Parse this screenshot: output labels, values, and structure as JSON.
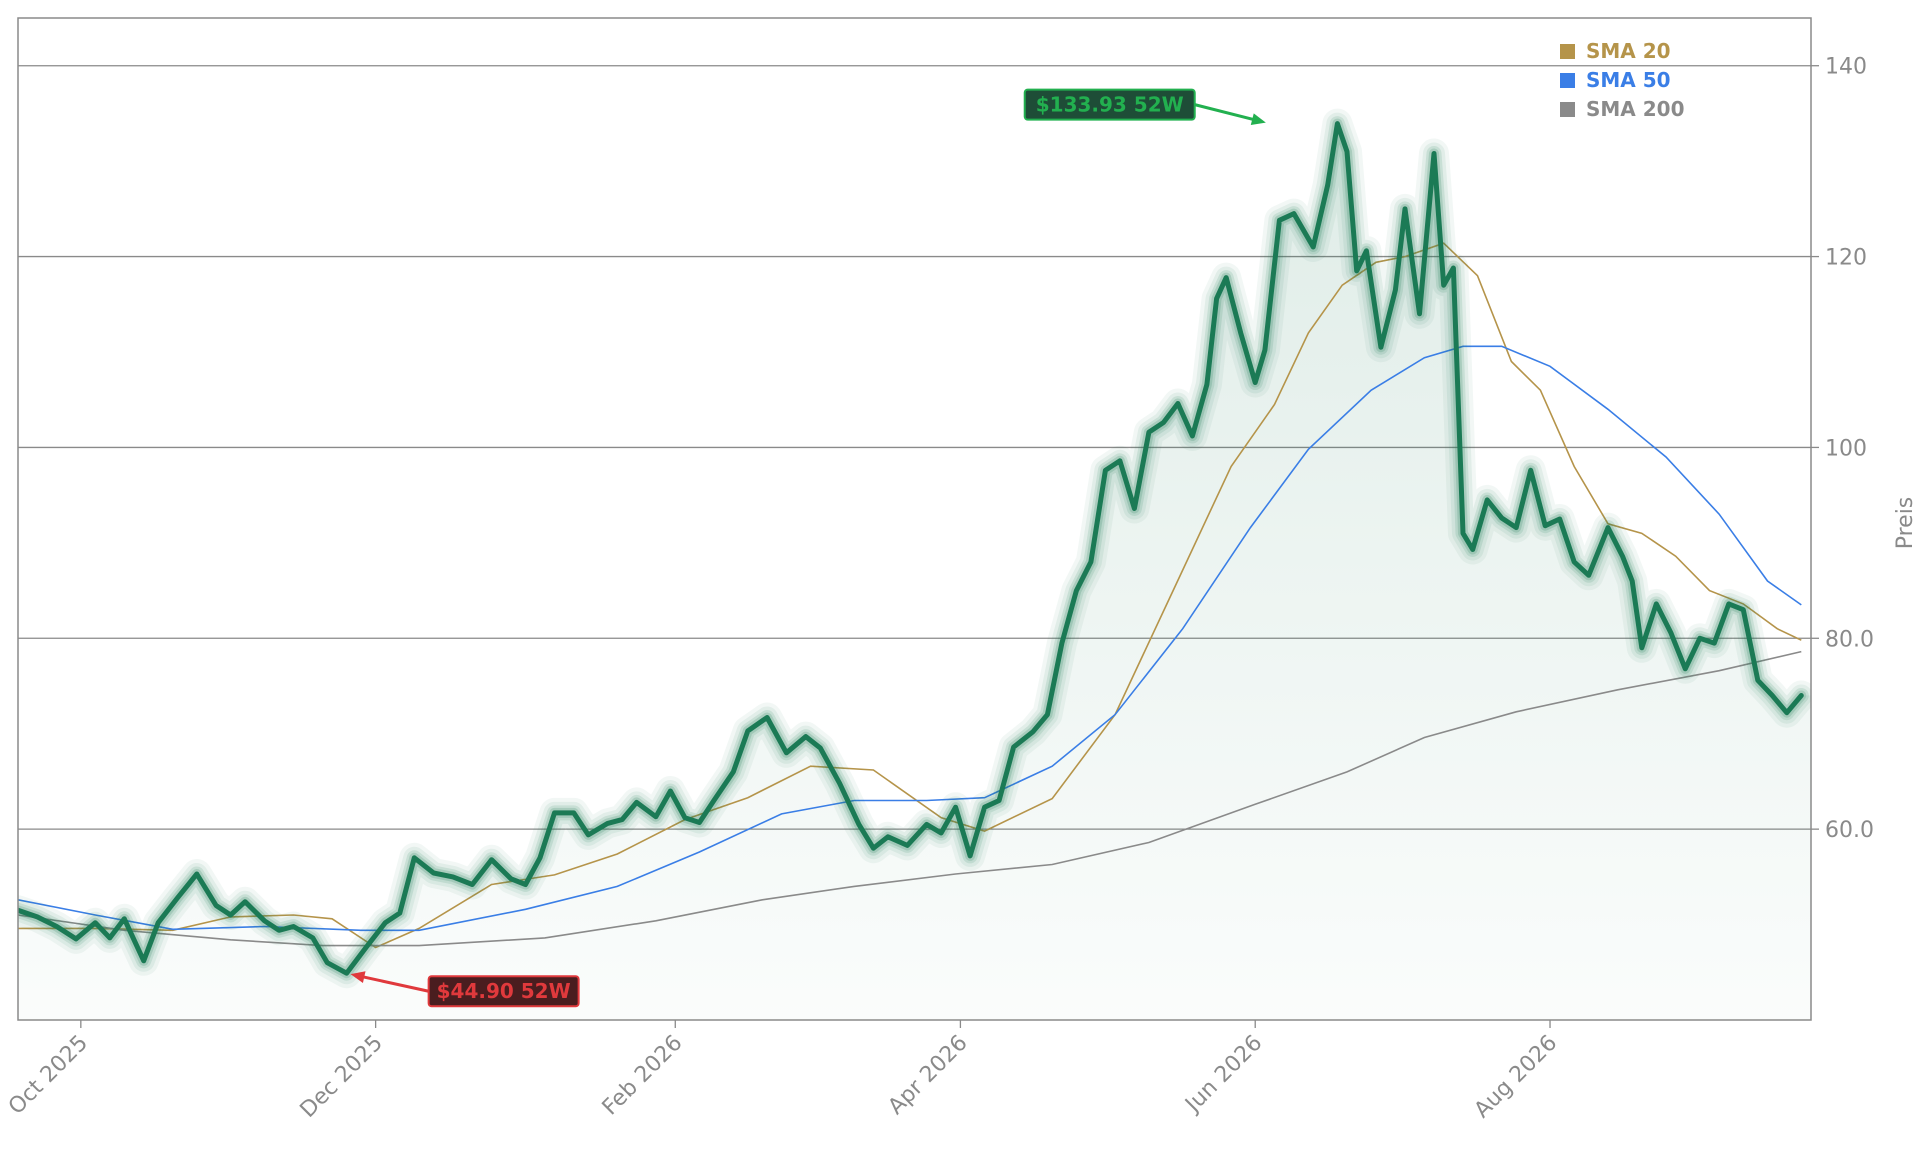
{
  "chart_data": {
    "type": "line",
    "ylabel": "Preis",
    "ylim": [
      40,
      145
    ],
    "yticks": [
      60,
      80,
      100,
      120,
      140
    ],
    "ytick_labels": [
      "60.0",
      "80.0",
      "100",
      "120",
      "140"
    ],
    "xticks": [
      {
        "date": "2025-10-01",
        "label": "Oct 2025"
      },
      {
        "date": "2025-12-01",
        "label": "Dec 2025"
      },
      {
        "date": "2026-02-01",
        "label": "Feb 2026"
      },
      {
        "date": "2026-04-01",
        "label": "Apr 2026"
      },
      {
        "date": "2026-06-01",
        "label": "Jun 2026"
      },
      {
        "date": "2026-08-01",
        "label": "Aug 2026"
      }
    ],
    "xlim": [
      "2025-09-18",
      "2026-09-24"
    ],
    "grid": "horizontal",
    "legend_placement": "top-right",
    "legend": [
      {
        "label": "SMA 20",
        "color": "#b5944a"
      },
      {
        "label": "SMA 50",
        "color": "#3a7ee6"
      },
      {
        "label": "SMA 200",
        "color": "#8a8a8a"
      }
    ],
    "annotations": [
      {
        "text": "$133.93 52W",
        "date": "2026-06-04",
        "value": 133.93,
        "kind": "high",
        "color": "#22b04f"
      },
      {
        "text": "$44.90 52W",
        "date": "2025-11-25",
        "value": 44.9,
        "kind": "low",
        "color": "#e0393c"
      }
    ],
    "series": [
      {
        "role": "price",
        "color": "#1b7a55",
        "points": [
          [
            "2025-09-18",
            51.5
          ],
          [
            "2025-09-22",
            50.8
          ],
          [
            "2025-09-26",
            49.8
          ],
          [
            "2025-09-30",
            48.5
          ],
          [
            "2025-10-04",
            50.2
          ],
          [
            "2025-10-07",
            48.6
          ],
          [
            "2025-10-10",
            50.6
          ],
          [
            "2025-10-14",
            46.2
          ],
          [
            "2025-10-17",
            50.2
          ],
          [
            "2025-10-21",
            52.8
          ],
          [
            "2025-10-25",
            55.3
          ],
          [
            "2025-10-29",
            52.0
          ],
          [
            "2025-11-01",
            51.0
          ],
          [
            "2025-11-04",
            52.4
          ],
          [
            "2025-11-08",
            50.4
          ],
          [
            "2025-11-11",
            49.4
          ],
          [
            "2025-11-14",
            49.8
          ],
          [
            "2025-11-18",
            48.6
          ],
          [
            "2025-11-21",
            46.0
          ],
          [
            "2025-11-25",
            44.9
          ],
          [
            "2025-11-29",
            47.6
          ],
          [
            "2025-12-03",
            50.2
          ],
          [
            "2025-12-06",
            51.2
          ],
          [
            "2025-12-09",
            57.0
          ],
          [
            "2025-12-13",
            55.4
          ],
          [
            "2025-12-17",
            55.0
          ],
          [
            "2025-12-21",
            54.2
          ],
          [
            "2025-12-25",
            56.8
          ],
          [
            "2025-12-29",
            54.8
          ],
          [
            "2026-01-01",
            54.2
          ],
          [
            "2026-01-04",
            57.0
          ],
          [
            "2026-01-07",
            61.7
          ],
          [
            "2026-01-11",
            61.7
          ],
          [
            "2026-01-14",
            59.4
          ],
          [
            "2026-01-18",
            60.6
          ],
          [
            "2026-01-21",
            61.0
          ],
          [
            "2026-01-24",
            62.8
          ],
          [
            "2026-01-28",
            61.3
          ],
          [
            "2026-01-31",
            64.0
          ],
          [
            "2026-02-03",
            61.2
          ],
          [
            "2026-02-06",
            60.7
          ],
          [
            "2026-02-09",
            63.0
          ],
          [
            "2026-02-13",
            66.0
          ],
          [
            "2026-02-16",
            70.3
          ],
          [
            "2026-02-20",
            71.7
          ],
          [
            "2026-02-24",
            68.0
          ],
          [
            "2026-02-28",
            69.7
          ],
          [
            "2026-03-03",
            68.5
          ],
          [
            "2026-03-07",
            64.8
          ],
          [
            "2026-03-11",
            60.5
          ],
          [
            "2026-03-14",
            58.0
          ],
          [
            "2026-03-17",
            59.2
          ],
          [
            "2026-03-21",
            58.3
          ],
          [
            "2026-03-25",
            60.5
          ],
          [
            "2026-03-28",
            59.6
          ],
          [
            "2026-03-31",
            62.3
          ],
          [
            "2026-04-03",
            57.2
          ],
          [
            "2026-04-06",
            62.3
          ],
          [
            "2026-04-09",
            63.0
          ],
          [
            "2026-04-12",
            68.6
          ],
          [
            "2026-04-16",
            70.2
          ],
          [
            "2026-04-19",
            72.0
          ],
          [
            "2026-04-22",
            79.5
          ],
          [
            "2026-04-25",
            85.0
          ],
          [
            "2026-04-28",
            88.0
          ],
          [
            "2026-05-01",
            97.6
          ],
          [
            "2026-05-04",
            98.6
          ],
          [
            "2026-05-07",
            93.6
          ],
          [
            "2026-05-10",
            101.6
          ],
          [
            "2026-05-13",
            102.6
          ],
          [
            "2026-05-16",
            104.6
          ],
          [
            "2026-05-19",
            101.2
          ],
          [
            "2026-05-22",
            106.6
          ],
          [
            "2026-05-24",
            115.6
          ],
          [
            "2026-05-26",
            117.8
          ],
          [
            "2026-05-29",
            112.0
          ],
          [
            "2026-06-01",
            106.8
          ],
          [
            "2026-06-03",
            110.2
          ],
          [
            "2026-06-06",
            123.8
          ],
          [
            "2026-06-09",
            124.5
          ],
          [
            "2026-06-13",
            121.0
          ],
          [
            "2026-06-16",
            127.5
          ],
          [
            "2026-06-18",
            133.93
          ],
          [
            "2026-06-20",
            131.0
          ],
          [
            "2026-06-22",
            118.5
          ],
          [
            "2026-06-24",
            120.6
          ],
          [
            "2026-06-27",
            110.5
          ],
          [
            "2026-06-30",
            116.5
          ],
          [
            "2026-07-02",
            125.0
          ],
          [
            "2026-07-05",
            114.0
          ],
          [
            "2026-07-08",
            130.8
          ],
          [
            "2026-07-10",
            117.0
          ],
          [
            "2026-07-12",
            118.8
          ],
          [
            "2026-07-14",
            91.0
          ],
          [
            "2026-07-16",
            89.3
          ],
          [
            "2026-07-19",
            94.5
          ],
          [
            "2026-07-22",
            92.6
          ],
          [
            "2026-07-25",
            91.6
          ],
          [
            "2026-07-28",
            97.6
          ],
          [
            "2026-07-31",
            91.8
          ],
          [
            "2026-08-03",
            92.5
          ],
          [
            "2026-08-06",
            88.0
          ],
          [
            "2026-08-09",
            86.6
          ],
          [
            "2026-08-13",
            91.6
          ],
          [
            "2026-08-16",
            88.6
          ],
          [
            "2026-08-18",
            86.0
          ],
          [
            "2026-08-20",
            79.0
          ],
          [
            "2026-08-23",
            83.6
          ],
          [
            "2026-08-26",
            80.6
          ],
          [
            "2026-08-29",
            76.8
          ],
          [
            "2026-09-01",
            80.0
          ],
          [
            "2026-09-04",
            79.5
          ],
          [
            "2026-09-07",
            83.6
          ],
          [
            "2026-09-10",
            83.0
          ],
          [
            "2026-09-13",
            75.6
          ],
          [
            "2026-09-16",
            74.0
          ],
          [
            "2026-09-19",
            72.2
          ],
          [
            "2026-09-22",
            74.0
          ]
        ]
      },
      {
        "name": "SMA 20",
        "color": "#b5944a",
        "points": [
          [
            "2025-09-18",
            49.6
          ],
          [
            "2025-10-04",
            49.6
          ],
          [
            "2025-10-20",
            49.4
          ],
          [
            "2025-11-01",
            50.8
          ],
          [
            "2025-11-14",
            51.0
          ],
          [
            "2025-11-22",
            50.6
          ],
          [
            "2025-12-01",
            47.6
          ],
          [
            "2025-12-10",
            49.6
          ],
          [
            "2025-12-25",
            54.2
          ],
          [
            "2026-01-07",
            55.2
          ],
          [
            "2026-01-20",
            57.4
          ],
          [
            "2026-02-03",
            61.0
          ],
          [
            "2026-02-16",
            63.3
          ],
          [
            "2026-03-01",
            66.6
          ],
          [
            "2026-03-14",
            66.2
          ],
          [
            "2026-03-28",
            61.2
          ],
          [
            "2026-04-06",
            59.8
          ],
          [
            "2026-04-20",
            63.2
          ],
          [
            "2026-05-03",
            72.0
          ],
          [
            "2026-05-15",
            85.0
          ],
          [
            "2026-05-27",
            98.0
          ],
          [
            "2026-06-05",
            104.5
          ],
          [
            "2026-06-12",
            112.0
          ],
          [
            "2026-06-19",
            117.0
          ],
          [
            "2026-06-26",
            119.4
          ],
          [
            "2026-07-02",
            120.0
          ],
          [
            "2026-07-10",
            121.4
          ],
          [
            "2026-07-17",
            118.0
          ],
          [
            "2026-07-24",
            109.0
          ],
          [
            "2026-07-30",
            106.0
          ],
          [
            "2026-08-06",
            98.0
          ],
          [
            "2026-08-13",
            92.0
          ],
          [
            "2026-08-20",
            91.0
          ],
          [
            "2026-08-27",
            88.6
          ],
          [
            "2026-09-03",
            85.0
          ],
          [
            "2026-09-10",
            83.6
          ],
          [
            "2026-09-17",
            81.0
          ],
          [
            "2026-09-22",
            79.8
          ]
        ]
      },
      {
        "name": "SMA 50",
        "color": "#3a7ee6",
        "points": [
          [
            "2025-09-18",
            52.6
          ],
          [
            "2025-10-04",
            51.0
          ],
          [
            "2025-10-20",
            49.5
          ],
          [
            "2025-11-08",
            49.8
          ],
          [
            "2025-11-28",
            49.4
          ],
          [
            "2025-12-10",
            49.4
          ],
          [
            "2026-01-01",
            51.6
          ],
          [
            "2026-01-20",
            54.0
          ],
          [
            "2026-02-06",
            57.6
          ],
          [
            "2026-02-23",
            61.6
          ],
          [
            "2026-03-10",
            63.0
          ],
          [
            "2026-03-25",
            63.0
          ],
          [
            "2026-04-06",
            63.3
          ],
          [
            "2026-04-20",
            66.6
          ],
          [
            "2026-05-03",
            72.0
          ],
          [
            "2026-05-17",
            81.0
          ],
          [
            "2026-05-31",
            91.6
          ],
          [
            "2026-06-12",
            99.8
          ],
          [
            "2026-06-25",
            106.0
          ],
          [
            "2026-07-06",
            109.4
          ],
          [
            "2026-07-14",
            110.6
          ],
          [
            "2026-07-22",
            110.6
          ],
          [
            "2026-08-01",
            108.5
          ],
          [
            "2026-08-13",
            104.0
          ],
          [
            "2026-08-25",
            99.0
          ],
          [
            "2026-09-05",
            93.0
          ],
          [
            "2026-09-15",
            86.0
          ],
          [
            "2026-09-22",
            83.5
          ]
        ]
      },
      {
        "name": "SMA 200",
        "color": "#8a8a8a",
        "points": [
          [
            "2025-09-18",
            51.0
          ],
          [
            "2025-10-10",
            49.4
          ],
          [
            "2025-11-01",
            48.4
          ],
          [
            "2025-11-20",
            47.8
          ],
          [
            "2025-12-10",
            47.8
          ],
          [
            "2026-01-05",
            48.6
          ],
          [
            "2026-01-28",
            50.4
          ],
          [
            "2026-02-19",
            52.6
          ],
          [
            "2026-03-10",
            54.0
          ],
          [
            "2026-03-31",
            55.3
          ],
          [
            "2026-04-20",
            56.3
          ],
          [
            "2026-05-10",
            58.6
          ],
          [
            "2026-06-01",
            62.6
          ],
          [
            "2026-06-20",
            66.0
          ],
          [
            "2026-07-06",
            69.6
          ],
          [
            "2026-07-25",
            72.3
          ],
          [
            "2026-08-15",
            74.6
          ],
          [
            "2026-09-05",
            76.6
          ],
          [
            "2026-09-22",
            78.6
          ]
        ]
      }
    ]
  }
}
